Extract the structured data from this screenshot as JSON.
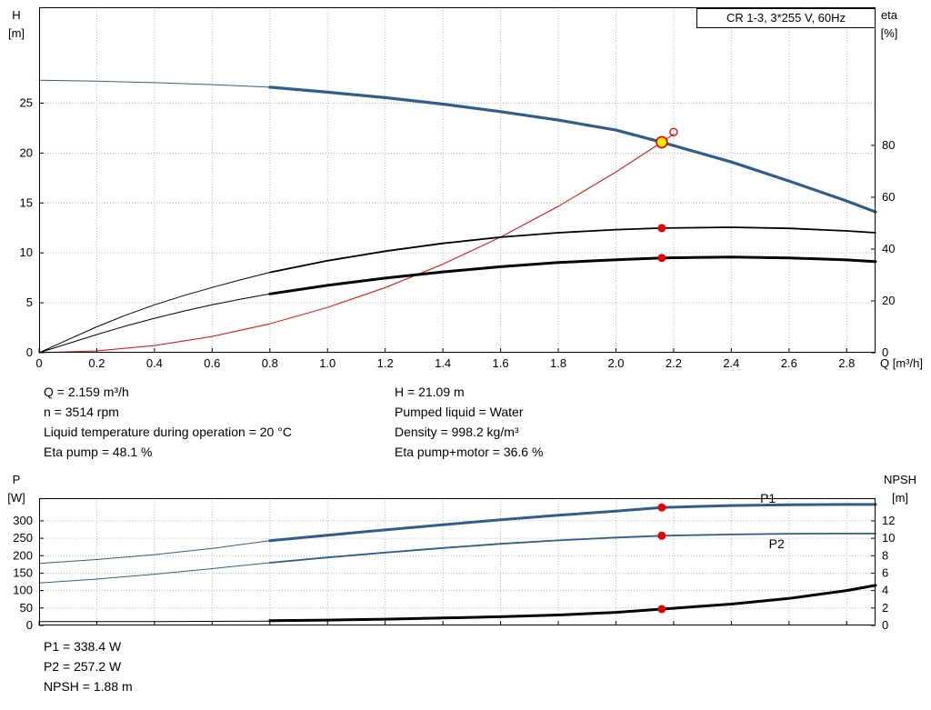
{
  "title_box": {
    "label": "CR 1-3, 3*255 V, 60Hz"
  },
  "colors": {
    "curve_blue": "#2e5f8a",
    "curve_red": "#e60000",
    "curve_black": "#000000",
    "marker_red": "#e60000",
    "marker_yellow": "#ffe600",
    "grid": "#b8b8b8"
  },
  "annotations": {
    "top_left": [
      "Q = 2.159 m³/h",
      "n = 3514 rpm",
      "Liquid temperature during operation = 20 °C",
      "Eta pump = 48.1 %"
    ],
    "top_right": [
      "H = 21.09 m",
      "Pumped liquid = Water",
      "Density = 998.2 kg/m³",
      "Eta pump+motor = 36.6 %"
    ],
    "bottom": [
      "P1 = 338.4 W",
      "P2 = 257.2 W",
      "NPSH = 1.88 m"
    ]
  },
  "chart_data": [
    {
      "type": "line",
      "title": "CR 1-3, 3*255 V, 60Hz",
      "xlabel": "Q [m³/h]",
      "ylabel_left": "H [m]",
      "ylabel_right": "eta [%]",
      "xlim": [
        0,
        2.9
      ],
      "ylim_left": [
        0,
        34.6
      ],
      "ylim_right": [
        0,
        133.3
      ],
      "xticks": [
        0,
        0.2,
        0.4,
        0.6,
        0.8,
        1.0,
        1.2,
        1.4,
        1.6,
        1.8,
        2.0,
        2.2,
        2.4,
        2.6,
        2.8
      ],
      "yticks_left": [
        0,
        5,
        10,
        15,
        20,
        25
      ],
      "yticks_right": [
        0,
        20,
        40,
        60,
        80
      ],
      "show_xtick_labels": true,
      "grid": true,
      "series": [
        {
          "name": "head-curve-low",
          "axis": "left",
          "color": "blue",
          "w": 1,
          "pts": [
            [
              0,
              27.3
            ],
            [
              0.2,
              27.2
            ],
            [
              0.4,
              27.05
            ],
            [
              0.6,
              26.85
            ],
            [
              0.8,
              26.6
            ]
          ]
        },
        {
          "name": "head-curve",
          "axis": "left",
          "color": "blue",
          "w": 3.2,
          "pts": [
            [
              0.8,
              26.6
            ],
            [
              1.0,
              26.1
            ],
            [
              1.2,
              25.55
            ],
            [
              1.4,
              24.9
            ],
            [
              1.6,
              24.15
            ],
            [
              1.8,
              23.3
            ],
            [
              2.0,
              22.3
            ],
            [
              2.159,
              21.09
            ],
            [
              2.4,
              19.1
            ],
            [
              2.6,
              17.2
            ],
            [
              2.8,
              15.2
            ],
            [
              2.9,
              14.1
            ]
          ]
        },
        {
          "name": "system-curve",
          "axis": "left",
          "color": "red",
          "w": 1,
          "pts": [
            [
              0,
              0
            ],
            [
              0.2,
              0.18
            ],
            [
              0.4,
              0.72
            ],
            [
              0.6,
              1.63
            ],
            [
              0.8,
              2.9
            ],
            [
              1.0,
              4.53
            ],
            [
              1.2,
              6.52
            ],
            [
              1.4,
              8.87
            ],
            [
              1.6,
              11.58
            ],
            [
              1.8,
              14.66
            ],
            [
              2.0,
              18.1
            ],
            [
              2.159,
              21.09
            ],
            [
              2.2,
              21.9
            ]
          ]
        },
        {
          "name": "eta-pump-curve-low",
          "axis": "right",
          "color": "black",
          "w": 1,
          "pts": [
            [
              0,
              0
            ],
            [
              0.1,
              5
            ],
            [
              0.2,
              10
            ],
            [
              0.3,
              14.5
            ],
            [
              0.4,
              18.5
            ],
            [
              0.5,
              22
            ],
            [
              0.6,
              25.2
            ],
            [
              0.7,
              28.2
            ],
            [
              0.8,
              31
            ]
          ]
        },
        {
          "name": "eta-pump-curve",
          "axis": "right",
          "color": "black",
          "w": 1.8,
          "pts": [
            [
              0.8,
              31
            ],
            [
              1.0,
              35.5
            ],
            [
              1.2,
              39.2
            ],
            [
              1.4,
              42.2
            ],
            [
              1.6,
              44.6
            ],
            [
              1.8,
              46.3
            ],
            [
              2.0,
              47.5
            ],
            [
              2.159,
              48.1
            ],
            [
              2.4,
              48.4
            ],
            [
              2.6,
              48.0
            ],
            [
              2.8,
              47.0
            ],
            [
              2.9,
              46.3
            ]
          ]
        },
        {
          "name": "eta-pump-motor-curve-low",
          "axis": "right",
          "color": "black",
          "w": 1,
          "pts": [
            [
              0,
              0
            ],
            [
              0.1,
              3.5
            ],
            [
              0.2,
              7
            ],
            [
              0.3,
              10.3
            ],
            [
              0.4,
              13.3
            ],
            [
              0.5,
              16
            ],
            [
              0.6,
              18.5
            ],
            [
              0.7,
              20.7
            ],
            [
              0.8,
              22.7
            ]
          ]
        },
        {
          "name": "eta-pump-motor-curve",
          "axis": "right",
          "color": "black",
          "w": 3,
          "pts": [
            [
              0.8,
              22.7
            ],
            [
              1.0,
              26
            ],
            [
              1.2,
              28.8
            ],
            [
              1.4,
              31.2
            ],
            [
              1.6,
              33.2
            ],
            [
              1.8,
              34.8
            ],
            [
              2.0,
              35.9
            ],
            [
              2.159,
              36.6
            ],
            [
              2.4,
              36.9
            ],
            [
              2.6,
              36.6
            ],
            [
              2.8,
              35.8
            ],
            [
              2.9,
              35.2
            ]
          ]
        }
      ],
      "markers": [
        {
          "style": "dot",
          "axis": "right",
          "x": 2.159,
          "y": 48.1,
          "name": "eta-pump-point"
        },
        {
          "style": "dot",
          "axis": "right",
          "x": 2.159,
          "y": 36.6,
          "name": "eta-pump-motor-point"
        },
        {
          "style": "open",
          "axis": "left",
          "x": 2.2,
          "y": 22.1,
          "name": "rated-point"
        },
        {
          "style": "duty",
          "axis": "left",
          "x": 2.159,
          "y": 21.09,
          "name": "duty-point"
        }
      ],
      "series_labels": []
    },
    {
      "type": "line",
      "title": "",
      "xlabel": "",
      "ylabel_left": "P [W]",
      "ylabel_right": "NPSH [m]",
      "xlim": [
        0,
        2.9
      ],
      "ylim_left": [
        0,
        365
      ],
      "ylim_right": [
        0,
        14.6
      ],
      "xticks": [
        0,
        0.2,
        0.4,
        0.6,
        0.8,
        1.0,
        1.2,
        1.4,
        1.6,
        1.8,
        2.0,
        2.2,
        2.4,
        2.6,
        2.8
      ],
      "yticks_left": [
        0,
        50,
        100,
        150,
        200,
        250,
        300
      ],
      "yticks_right": [
        0,
        2,
        4,
        6,
        8,
        10,
        12
      ],
      "show_xtick_labels": false,
      "grid": true,
      "series": [
        {
          "name": "p1-curve-low",
          "axis": "left",
          "color": "blue",
          "w": 1,
          "pts": [
            [
              0,
              178
            ],
            [
              0.2,
              189
            ],
            [
              0.4,
              203
            ],
            [
              0.6,
              221
            ],
            [
              0.8,
              243
            ]
          ]
        },
        {
          "name": "p1-curve",
          "axis": "left",
          "color": "blue",
          "w": 3,
          "pts": [
            [
              0.8,
              243
            ],
            [
              1.0,
              259
            ],
            [
              1.2,
              274
            ],
            [
              1.4,
              289
            ],
            [
              1.6,
              303
            ],
            [
              1.8,
              316
            ],
            [
              2.0,
              328
            ],
            [
              2.159,
              338.4
            ],
            [
              2.4,
              344
            ],
            [
              2.6,
              346
            ],
            [
              2.8,
              347
            ],
            [
              2.9,
              347
            ]
          ]
        },
        {
          "name": "p2-curve-low",
          "axis": "left",
          "color": "blue",
          "w": 1,
          "pts": [
            [
              0,
              122
            ],
            [
              0.2,
              133
            ],
            [
              0.4,
              147
            ],
            [
              0.6,
              163
            ],
            [
              0.8,
              180
            ]
          ]
        },
        {
          "name": "p2-curve",
          "axis": "left",
          "color": "blue",
          "w": 1.8,
          "pts": [
            [
              0.8,
              180
            ],
            [
              1.0,
              195
            ],
            [
              1.2,
              209
            ],
            [
              1.4,
              222
            ],
            [
              1.6,
              234
            ],
            [
              1.8,
              244
            ],
            [
              2.0,
              252
            ],
            [
              2.159,
              257.2
            ],
            [
              2.4,
              261
            ],
            [
              2.6,
              263
            ],
            [
              2.8,
              263.5
            ],
            [
              2.9,
              263.5
            ]
          ]
        },
        {
          "name": "npsh-curve-low",
          "axis": "right",
          "color": "black",
          "w": 1,
          "pts": [
            [
              0,
              0.45
            ],
            [
              0.4,
              0.45
            ],
            [
              0.8,
              0.5
            ]
          ]
        },
        {
          "name": "npsh-curve",
          "axis": "right",
          "color": "black",
          "w": 3,
          "pts": [
            [
              0.8,
              0.55
            ],
            [
              1.0,
              0.62
            ],
            [
              1.2,
              0.72
            ],
            [
              1.4,
              0.85
            ],
            [
              1.6,
              1.0
            ],
            [
              1.8,
              1.2
            ],
            [
              2.0,
              1.5
            ],
            [
              2.159,
              1.88
            ],
            [
              2.4,
              2.45
            ],
            [
              2.6,
              3.1
            ],
            [
              2.8,
              4.0
            ],
            [
              2.9,
              4.6
            ]
          ]
        }
      ],
      "markers": [
        {
          "style": "dot",
          "axis": "left",
          "x": 2.159,
          "y": 338.4,
          "name": "p1-point"
        },
        {
          "style": "dot",
          "axis": "left",
          "x": 2.159,
          "y": 257.2,
          "name": "p2-point"
        },
        {
          "style": "dot",
          "axis": "right",
          "x": 2.159,
          "y": 1.88,
          "name": "npsh-point"
        }
      ],
      "series_labels": [
        {
          "text": "P1",
          "x": 2.5,
          "y": 362,
          "axis": "left"
        },
        {
          "text": "P2",
          "x": 2.53,
          "y": 232,
          "axis": "left"
        }
      ]
    }
  ]
}
